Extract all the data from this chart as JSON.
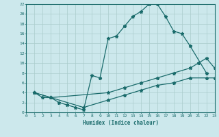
{
  "title": "",
  "xlabel": "Humidex (Indice chaleur)",
  "ylabel": "",
  "bg_color": "#cce8ec",
  "grid_color": "#aacccc",
  "line_color": "#1a6b6b",
  "xlim": [
    0,
    23
  ],
  "ylim": [
    0,
    22
  ],
  "xticks": [
    0,
    1,
    2,
    3,
    4,
    5,
    6,
    7,
    8,
    9,
    10,
    11,
    12,
    13,
    14,
    15,
    16,
    17,
    18,
    19,
    20,
    21,
    22,
    23
  ],
  "yticks": [
    0,
    2,
    4,
    6,
    8,
    10,
    12,
    14,
    16,
    18,
    20,
    22
  ],
  "line1_x": [
    1,
    2,
    3,
    4,
    5,
    6,
    7,
    8,
    9,
    10,
    11,
    12,
    13,
    14,
    15,
    16,
    17,
    18,
    19,
    20,
    22
  ],
  "line1_y": [
    4,
    3,
    3,
    2,
    1.5,
    1,
    0.5,
    7.5,
    7,
    15,
    15.5,
    17.5,
    19.5,
    20.5,
    22,
    22,
    19.5,
    16.5,
    16,
    13.5,
    8
  ],
  "line2_x": [
    1,
    3,
    10,
    12,
    14,
    16,
    18,
    20,
    21,
    22,
    23
  ],
  "line2_y": [
    4,
    3,
    4,
    5,
    6,
    7,
    8,
    9,
    10,
    11,
    9
  ],
  "line3_x": [
    1,
    3,
    7,
    10,
    12,
    14,
    16,
    18,
    20,
    22,
    23
  ],
  "line3_y": [
    4,
    3,
    1,
    2.5,
    3.5,
    4.5,
    5.5,
    6,
    7,
    7,
    7
  ]
}
